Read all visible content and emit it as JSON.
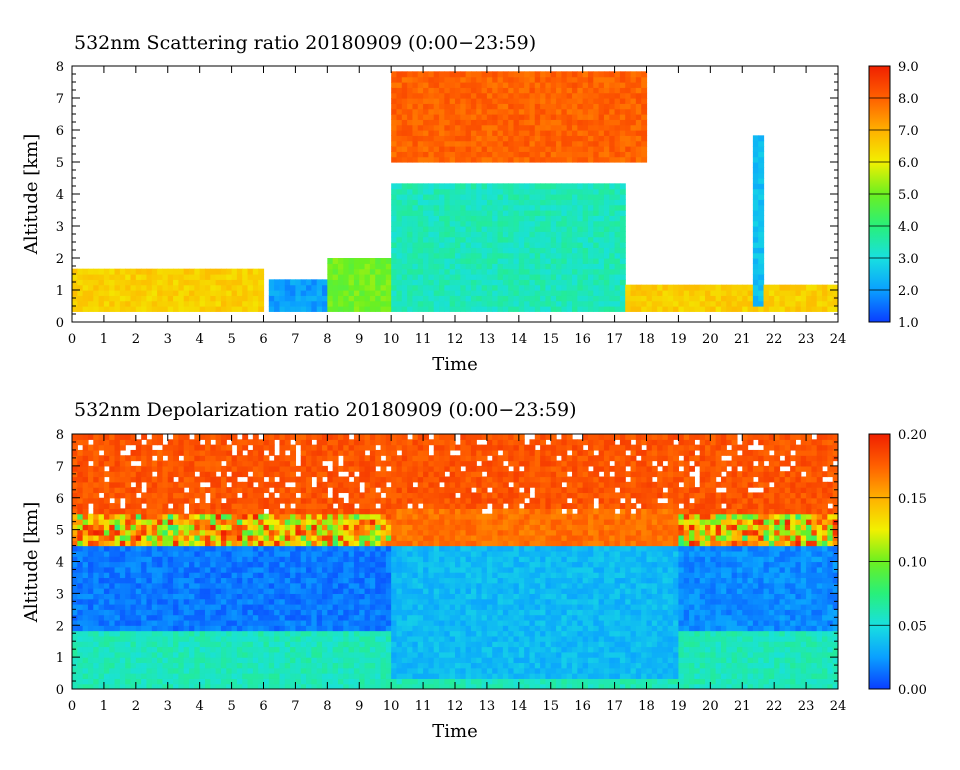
{
  "chart_data": [
    {
      "type": "heatmap",
      "title": "532nm Scattering ratio  20180909 (0:00−23:59)",
      "xlabel": "Time",
      "ylabel": "Altitude [km]",
      "xlim": [
        0,
        24
      ],
      "ylim": [
        0,
        8
      ],
      "x_ticks": [
        "0",
        "1",
        "2",
        "3",
        "4",
        "5",
        "6",
        "7",
        "8",
        "9",
        "10",
        "11",
        "12",
        "13",
        "14",
        "15",
        "16",
        "17",
        "18",
        "19",
        "20",
        "21",
        "22",
        "23",
        "24"
      ],
      "y_ticks": [
        "0",
        "1",
        "2",
        "3",
        "4",
        "5",
        "6",
        "7",
        "8"
      ],
      "colorbar": {
        "min": 1.0,
        "max": 9.0,
        "ticks": [
          "1.0",
          "2.0",
          "3.0",
          "4.0",
          "5.0",
          "6.0",
          "7.0",
          "8.0",
          "9.0"
        ],
        "colors": [
          "#0a3dff",
          "#0aa0ff",
          "#18e0e0",
          "#28f07a",
          "#6cf020",
          "#f2f000",
          "#ffb000",
          "#ff6000",
          "#f02000"
        ]
      },
      "features": [
        {
          "x": [
            0,
            6
          ],
          "base_km": 0.3,
          "top_km": 1.6,
          "value": 6.5
        },
        {
          "x": [
            6.2,
            8
          ],
          "base_km": 0.3,
          "top_km": 1.4,
          "value": 2.0
        },
        {
          "x": [
            8,
            10
          ],
          "base_km": 0.3,
          "top_km": 2.0,
          "value": 5.0
        },
        {
          "x": [
            10,
            17.3
          ],
          "base_km": 0.3,
          "top_km": 4.3,
          "value": 3.4
        },
        {
          "x": [
            10,
            18
          ],
          "base_km": 5.0,
          "top_km": 7.8,
          "value": 8.0
        },
        {
          "x": [
            17.3,
            24
          ],
          "base_km": 0.3,
          "top_km": 1.2,
          "value": 6.5
        },
        {
          "x": [
            21.4,
            21.7
          ],
          "base_km": 0.5,
          "top_km": 5.8,
          "value": 2.5
        }
      ]
    },
    {
      "type": "heatmap",
      "title": "532nm Depolarization ratio  20180909 (0:00−23:59)",
      "xlabel": "Time",
      "ylabel": "Altitude [km]",
      "xlim": [
        0,
        24
      ],
      "ylim": [
        0,
        8
      ],
      "x_ticks": [
        "0",
        "1",
        "2",
        "3",
        "4",
        "5",
        "6",
        "7",
        "8",
        "9",
        "10",
        "11",
        "12",
        "13",
        "14",
        "15",
        "16",
        "17",
        "18",
        "19",
        "20",
        "21",
        "22",
        "23",
        "24"
      ],
      "y_ticks": [
        "0",
        "1",
        "2",
        "3",
        "4",
        "5",
        "6",
        "7",
        "8"
      ],
      "colorbar": {
        "min": 0.0,
        "max": 0.2,
        "ticks": [
          "0.00",
          "0.05",
          "0.10",
          "0.15",
          "0.20"
        ],
        "colors": [
          "#0a3dff",
          "#0aa0ff",
          "#18e0e0",
          "#28f07a",
          "#6cf020",
          "#f2f000",
          "#ffb000",
          "#ff6000",
          "#f02000"
        ]
      },
      "features": [
        {
          "x": [
            0,
            24
          ],
          "base_km": 0.0,
          "top_km": 1.8,
          "value": 0.06
        },
        {
          "x": [
            0,
            10
          ],
          "base_km": 1.8,
          "top_km": 4.5,
          "value": 0.015
        },
        {
          "x": [
            0,
            24
          ],
          "base_km": 5.5,
          "top_km": 8.0,
          "value": 0.18
        },
        {
          "x": [
            10,
            19
          ],
          "base_km": 0.3,
          "top_km": 4.5,
          "value": 0.035
        },
        {
          "x": [
            10,
            19
          ],
          "base_km": 4.5,
          "top_km": 5.7,
          "value": 0.17
        },
        {
          "x": [
            19,
            24
          ],
          "base_km": 1.8,
          "top_km": 4.5,
          "value": 0.02
        }
      ]
    }
  ]
}
